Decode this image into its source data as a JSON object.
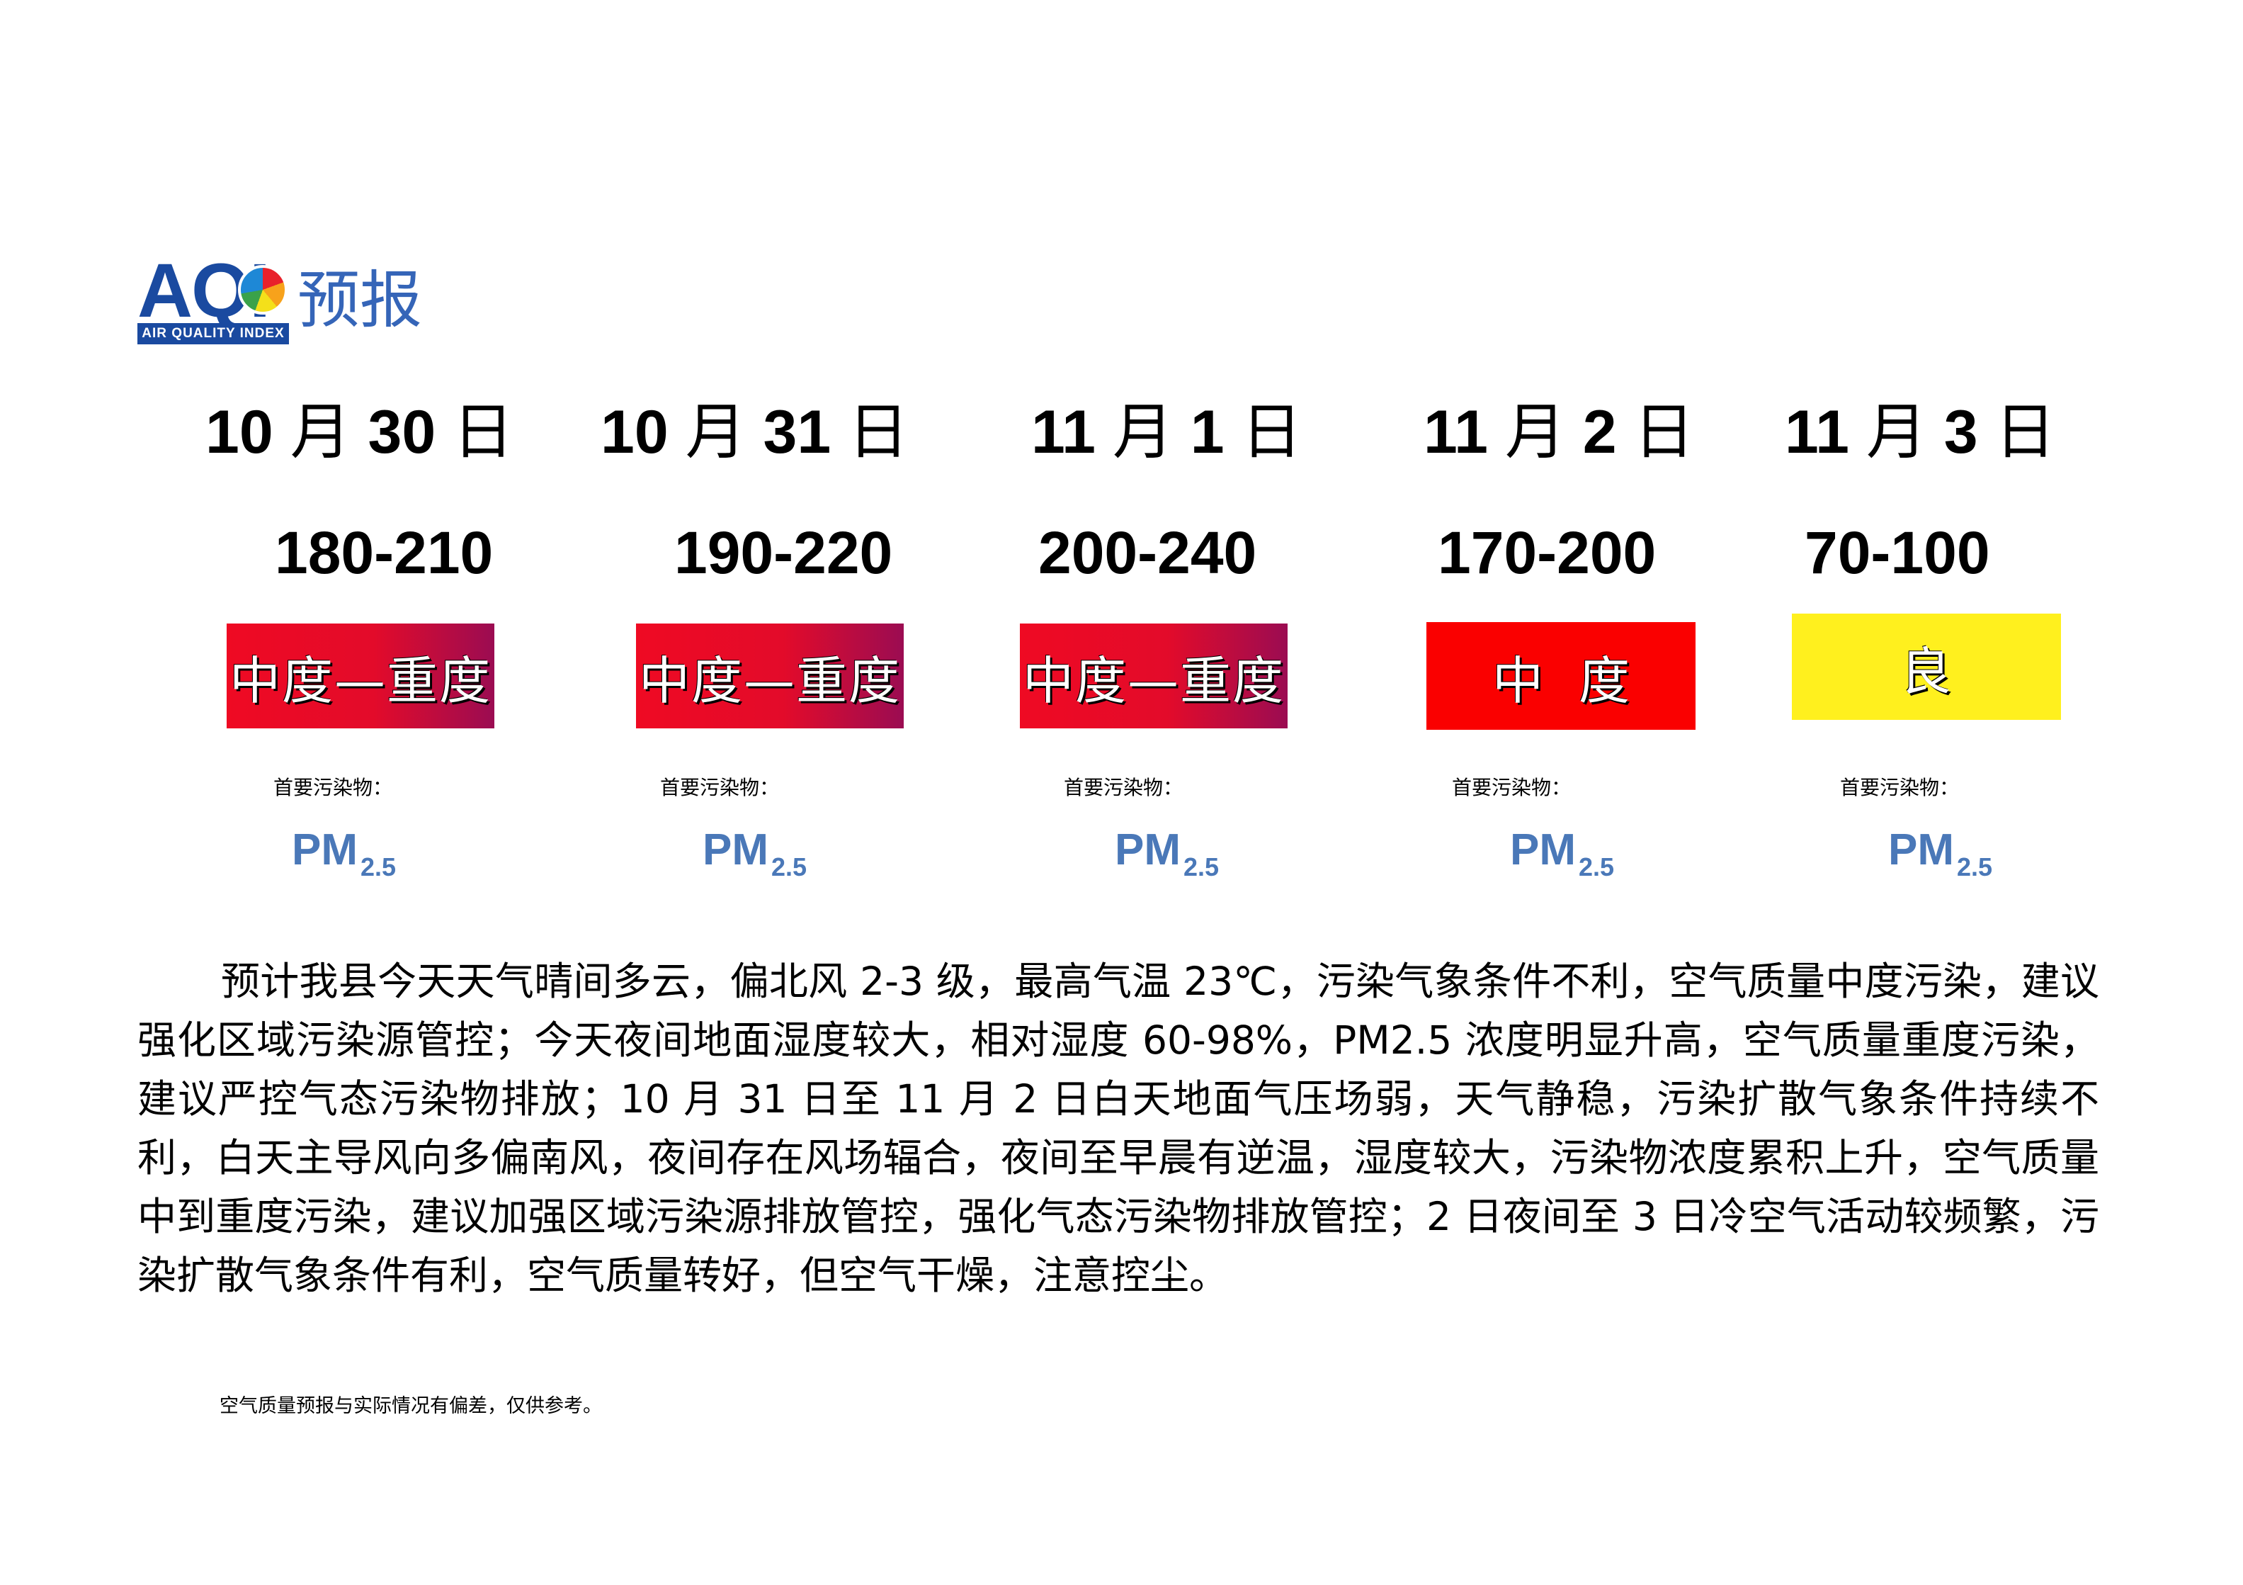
{
  "logo": {
    "abbr": "AQI",
    "tagline": "AIR QUALITY INDEX",
    "title_cn": "预报"
  },
  "forecasts": [
    {
      "date": "10",
      "month_unit": "月",
      "day": "30",
      "day_unit": "日",
      "aqi_range": "180-210",
      "level": "中度—重度",
      "level_color": "#e6102e",
      "pollutant_label": "首要污染物：",
      "pollutant": "PM",
      "pollutant_sub": "2.5"
    },
    {
      "date": "10",
      "month_unit": "月",
      "day": "31",
      "day_unit": "日",
      "aqi_range": "190-220",
      "level": "中度—重度",
      "level_color": "#e6102e",
      "pollutant_label": "首要污染物：",
      "pollutant": "PM",
      "pollutant_sub": "2.5"
    },
    {
      "date": "11",
      "month_unit": "月",
      "day": "1",
      "day_unit": "日",
      "aqi_range": "200-240",
      "level": "中度—重度",
      "level_color": "#e6102e",
      "pollutant_label": "首要污染物：",
      "pollutant": "PM",
      "pollutant_sub": "2.5"
    },
    {
      "date": "11",
      "month_unit": "月",
      "day": "2",
      "day_unit": "日",
      "aqi_range": "170-200",
      "level": "中度",
      "level_color": "#fa0000",
      "pollutant_label": "首要污染物：",
      "pollutant": "PM",
      "pollutant_sub": "2.5"
    },
    {
      "date": "11",
      "month_unit": "月",
      "day": "3",
      "day_unit": "日",
      "aqi_range": "70-100",
      "level": "良",
      "level_color": "#fff01e",
      "pollutant_label": "首要污染物：",
      "pollutant": "PM",
      "pollutant_sub": "2.5"
    }
  ],
  "description": "预计我县今天天气晴间多云，偏北风 2-3 级，最高气温 23℃，污染气象条件不利，空气质量中度污染，建议强化区域污染源管控；今天夜间地面湿度较大，相对湿度 60-98%，PM2.5 浓度明显升高，空气质量重度污染，建议严控气态污染物排放；10 月 31 日至 11 月 2 日白天地面气压场弱，天气静稳，污染扩散气象条件持续不利，白天主导风向多偏南风，夜间存在风场辐合，夜间至早晨有逆温，湿度较大，污染物浓度累积上升，空气质量中到重度污染，建议加强区域污染源排放管控，强化气态污染物排放管控；2 日夜间至 3 日冷空气活动较频繁，污染扩散气象条件有利，空气质量转好，但空气干燥，注意控尘。",
  "disclaimer": "空气质量预报与实际情况有偏差，仅供参考。"
}
